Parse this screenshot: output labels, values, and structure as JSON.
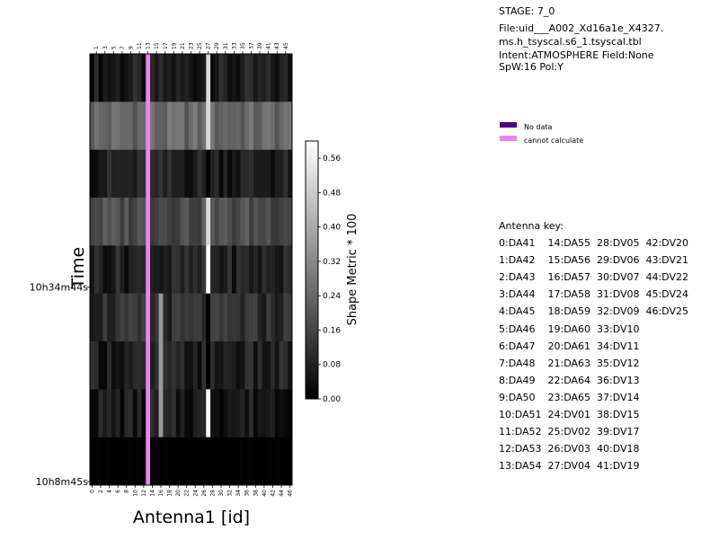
{
  "chart_data": {
    "type": "heatmap",
    "xlabel": "Antenna1 [id]",
    "ylabel": "Time",
    "colorbar_label": "Shape Metric * 100",
    "colorbar_ticks": [
      "0.00",
      "0.08",
      "0.16",
      "0.24",
      "0.32",
      "0.40",
      "0.48",
      "0.56"
    ],
    "colorbar_range": [
      0,
      0.6
    ],
    "x_ticks_bottom": [
      "0",
      "2",
      "4",
      "6",
      "8",
      "10",
      "12",
      "14",
      "16",
      "18",
      "20",
      "22",
      "24",
      "26",
      "28",
      "30",
      "32",
      "34",
      "36",
      "38",
      "40",
      "42",
      "44",
      "46"
    ],
    "x_ticks_top": [
      "1",
      "3",
      "5",
      "7",
      "9",
      "11",
      "13",
      "15",
      "17",
      "19",
      "21",
      "23",
      "25",
      "27",
      "29",
      "31",
      "33",
      "35",
      "37",
      "39",
      "41",
      "43",
      "45"
    ],
    "y_ticks": [
      "10h34m44s",
      "10h8m45s"
    ],
    "n_antennas": 47,
    "n_times": 9,
    "cannot_calculate_antenna": 13,
    "no_data_antennas": [],
    "colors": {
      "no_data": "#4b0082",
      "cannot_calculate": "#ee82ee"
    }
  },
  "legend": {
    "no_data": "No data",
    "cannot_calculate": "cannot calculate"
  },
  "info": {
    "stage": "STAGE: 7_0",
    "file_1": "File:uid___A002_Xd16a1e_X4327.",
    "file_2": "ms.h_tsyscal.s6_1.tsyscal.tbl",
    "intent": "Intent:ATMOSPHERE Field:None",
    "spw": "SpW:16 Pol:Y"
  },
  "antenna_key": {
    "title": "Antenna key:",
    "lines": [
      "0:DA41    14:DA55  28:DV05  42:DV20",
      "1:DA42    15:DA56  29:DV06  43:DV21",
      "2:DA43    16:DA57  30:DV07  44:DV22",
      "3:DA44    17:DA58  31:DV08  45:DV24",
      "4:DA45    18:DA59  32:DV09  46:DV25",
      "5:DA46    19:DA60  33:DV10",
      "6:DA47    20:DA61  34:DV11",
      "7:DA48    21:DA63  35:DV12",
      "8:DA49    22:DA64  36:DV13",
      "9:DA50    23:DA65  37:DV14",
      "10:DA51  24:DV01  38:DV15",
      "11:DA52  25:DV02  39:DV17",
      "12:DA53  26:DV03  40:DV18",
      "13:DA54  27:DV04  41:DV19"
    ]
  }
}
